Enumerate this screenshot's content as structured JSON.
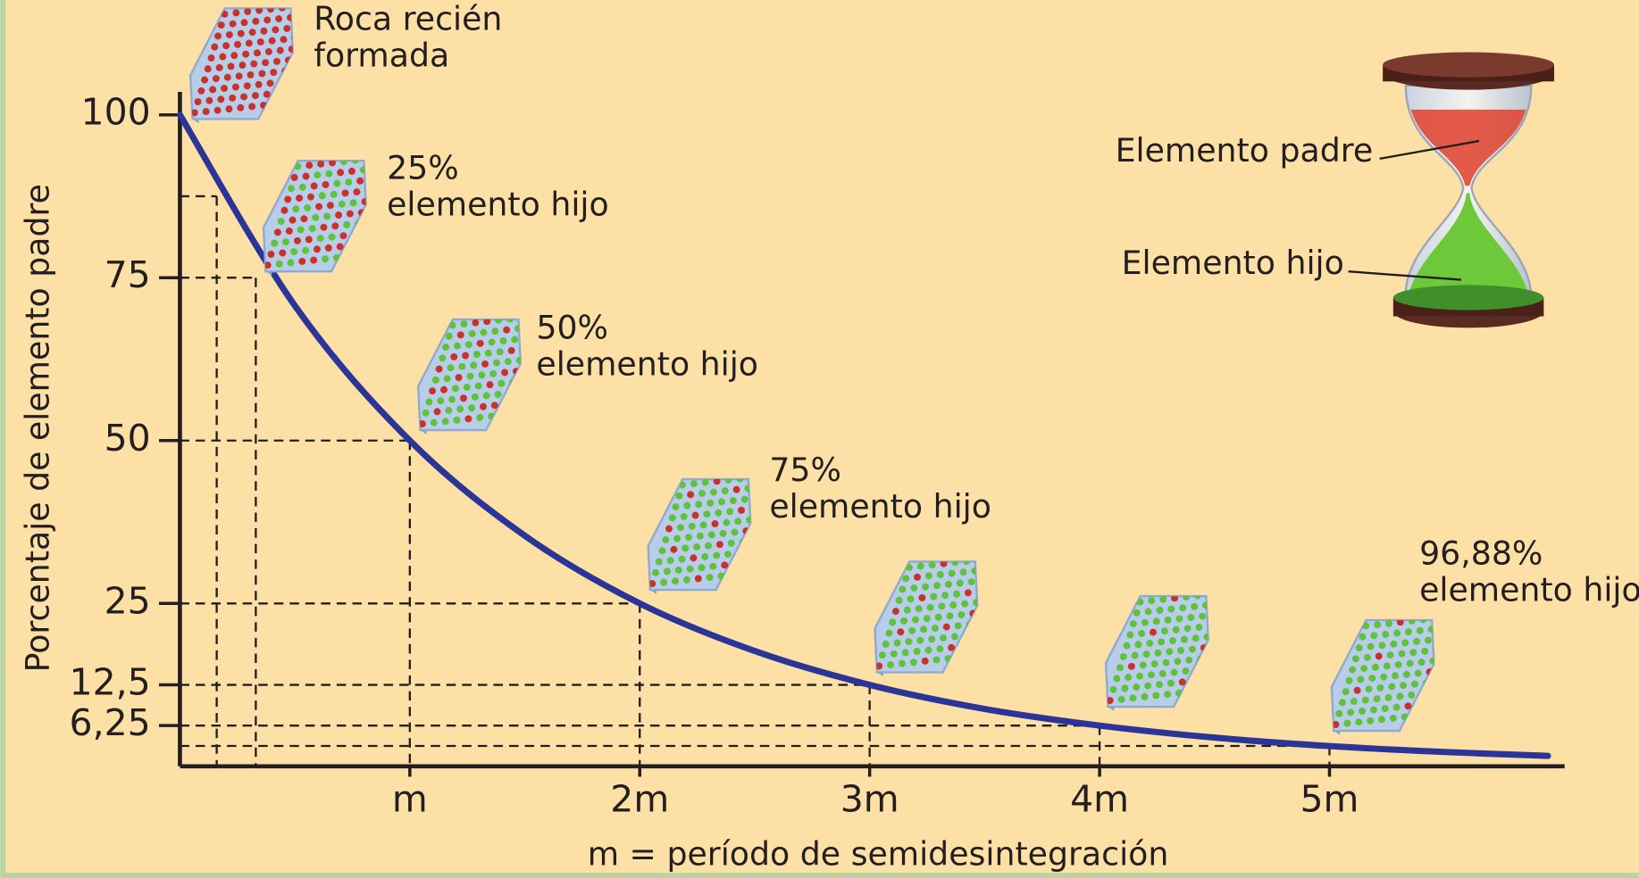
{
  "chart_data": {
    "type": "line",
    "y_label": "Porcentaje de elemento padre",
    "x_label": "m = período de semidesintegración",
    "xlim": [
      0,
      6
    ],
    "ylim": [
      0,
      100
    ],
    "xticks": [
      {
        "value": 1,
        "label": "m"
      },
      {
        "value": 2,
        "label": "2m"
      },
      {
        "value": 3,
        "label": "3m"
      },
      {
        "value": 4,
        "label": "4m"
      },
      {
        "value": 5,
        "label": "5m"
      }
    ],
    "yticks": [
      100,
      75,
      50,
      25,
      {
        "value": 12.5,
        "label": "12,5"
      },
      {
        "value": 6.25,
        "label": "6,25"
      }
    ],
    "color": "#2b3597",
    "x": [
      0,
      0.5,
      1,
      1.5,
      2,
      2.5,
      3,
      3.5,
      4,
      4.5,
      5,
      5.5,
      5.95
    ],
    "values": [
      100,
      70.7,
      50,
      35.4,
      25,
      17.7,
      12.5,
      8.8,
      6.25,
      4.4,
      3.1,
      2.2,
      1.6
    ],
    "guides": {
      "x": [
        0.16,
        0.33,
        1,
        2,
        3,
        4,
        5
      ],
      "y": [
        87.5,
        75,
        50,
        25,
        12.5,
        6.25,
        3.125
      ]
    },
    "annotations": [
      {
        "lines": [
          "Roca recién",
          "formada"
        ]
      },
      {
        "lines": [
          "25%",
          "elemento hijo"
        ]
      },
      {
        "lines": [
          "50%",
          "elemento hijo"
        ]
      },
      {
        "lines": [
          "75%",
          "elemento hijo"
        ]
      },
      {
        "lines": [
          "96,88%",
          "elemento hijo"
        ]
      }
    ],
    "hourglass_labels": [
      "Elemento padre",
      "Elemento hijo"
    ]
  }
}
